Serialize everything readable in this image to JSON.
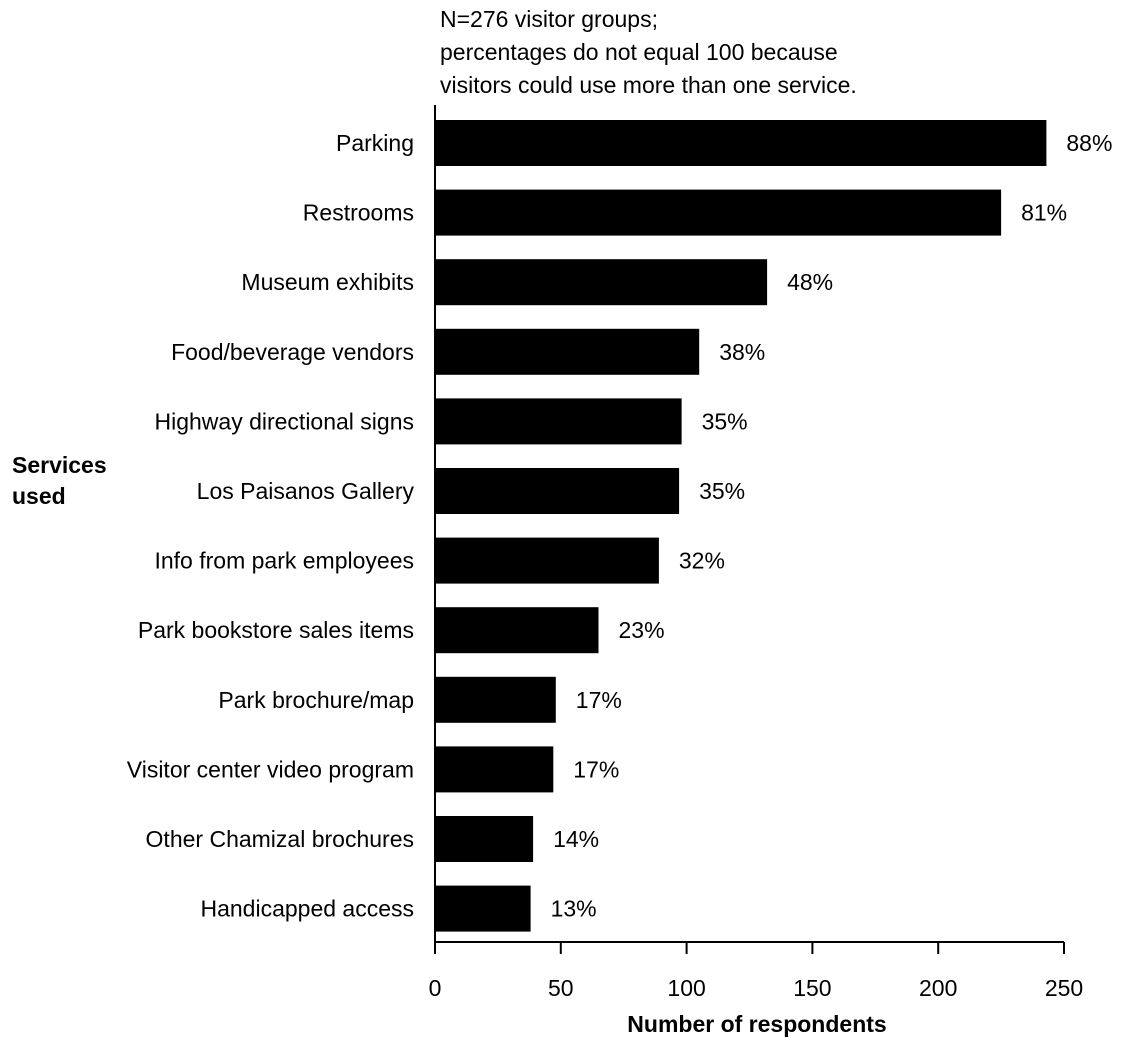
{
  "chart_data": {
    "type": "bar",
    "orientation": "horizontal",
    "note_lines": [
      "N=276 visitor groups;",
      "percentages do not equal 100 because",
      "visitors could use more than one service."
    ],
    "ylabel_lines": [
      "Services",
      "used"
    ],
    "xlabel": "Number of respondents",
    "xlim": [
      0,
      250
    ],
    "xticks": [
      0,
      50,
      100,
      150,
      200,
      250
    ],
    "grid": false,
    "bar_color": "#000000",
    "categories": [
      "Parking",
      "Restrooms",
      "Museum exhibits",
      "Food/beverage vendors",
      "Highway directional signs",
      "Los Paisanos Gallery",
      "Info from park employees",
      "Park bookstore sales items",
      "Park brochure/map",
      "Visitor center video program",
      "Other Chamizal brochures",
      "Handicapped access"
    ],
    "values": [
      243,
      225,
      132,
      105,
      98,
      97,
      89,
      65,
      48,
      47,
      39,
      38
    ],
    "labels": [
      "88%",
      "81%",
      "48%",
      "38%",
      "35%",
      "35%",
      "32%",
      "23%",
      "17%",
      "17%",
      "14%",
      "13%"
    ]
  }
}
